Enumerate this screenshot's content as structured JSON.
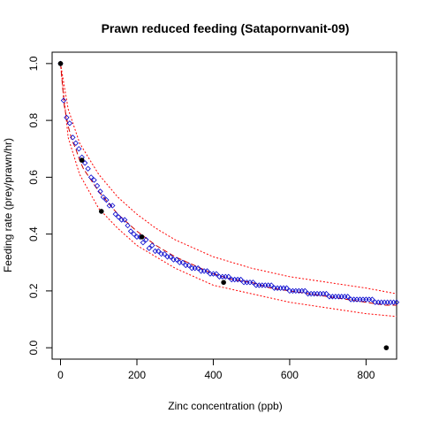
{
  "chart_data": {
    "type": "scatter",
    "title": "Prawn reduced feeding (Satapornvanit-09)",
    "xlabel": "Zinc concentration (ppb)",
    "ylabel": "Feeding rate (prey/prawn/hr)",
    "xlim": [
      -22,
      880
    ],
    "ylim": [
      -0.04,
      1.04
    ],
    "x_ticks": [
      0,
      200,
      400,
      600,
      800
    ],
    "y_ticks": [
      0.0,
      0.2,
      0.4,
      0.6,
      0.8,
      1.0
    ],
    "grid": false,
    "colors": {
      "observed": "#000000",
      "simulated": "#0000cd",
      "fit_curve": "#cc0000",
      "band": "#ff0000"
    },
    "series": [
      {
        "kind": "observed",
        "x": [
          0,
          56,
          107,
          213,
          427,
          853
        ],
        "y": [
          1.0,
          0.66,
          0.48,
          0.39,
          0.23,
          0.0
        ]
      },
      {
        "kind": "simulated",
        "x": [
          0,
          8,
          16,
          24,
          32,
          40,
          48,
          56,
          64,
          72,
          80,
          88,
          96,
          104,
          112,
          120,
          128,
          136,
          144,
          152,
          160,
          168,
          176,
          184,
          192,
          200,
          208,
          216,
          224,
          232,
          240,
          248,
          256,
          264,
          272,
          280,
          288,
          296,
          304,
          312,
          320,
          328,
          336,
          344,
          352,
          360,
          368,
          376,
          384,
          392,
          400,
          408,
          416,
          424,
          432,
          440,
          448,
          456,
          464,
          472,
          480,
          488,
          496,
          504,
          512,
          520,
          528,
          536,
          544,
          552,
          560,
          568,
          576,
          584,
          592,
          600,
          608,
          616,
          624,
          632,
          640,
          648,
          656,
          664,
          672,
          680,
          688,
          696,
          704,
          712,
          720,
          728,
          736,
          744,
          752,
          760,
          768,
          776,
          784,
          792,
          800,
          808,
          816,
          824,
          832,
          840,
          848,
          856,
          864,
          872,
          880
        ],
        "y": [
          1.0,
          0.87,
          0.81,
          0.79,
          0.74,
          0.72,
          0.7,
          0.67,
          0.65,
          0.63,
          0.6,
          0.59,
          0.57,
          0.55,
          0.53,
          0.52,
          0.5,
          0.5,
          0.47,
          0.46,
          0.45,
          0.45,
          0.43,
          0.41,
          0.4,
          0.39,
          0.39,
          0.37,
          0.38,
          0.35,
          0.36,
          0.34,
          0.34,
          0.33,
          0.33,
          0.32,
          0.32,
          0.31,
          0.31,
          0.3,
          0.3,
          0.29,
          0.29,
          0.28,
          0.28,
          0.28,
          0.27,
          0.27,
          0.27,
          0.26,
          0.26,
          0.26,
          0.25,
          0.25,
          0.25,
          0.25,
          0.24,
          0.24,
          0.24,
          0.24,
          0.23,
          0.23,
          0.23,
          0.23,
          0.22,
          0.22,
          0.22,
          0.22,
          0.22,
          0.22,
          0.21,
          0.21,
          0.21,
          0.21,
          0.21,
          0.2,
          0.2,
          0.2,
          0.2,
          0.2,
          0.2,
          0.19,
          0.19,
          0.19,
          0.19,
          0.19,
          0.19,
          0.19,
          0.18,
          0.18,
          0.18,
          0.18,
          0.18,
          0.18,
          0.18,
          0.17,
          0.17,
          0.17,
          0.17,
          0.17,
          0.17,
          0.17,
          0.17,
          0.16,
          0.16,
          0.16,
          0.16,
          0.16,
          0.16,
          0.16,
          0.16
        ]
      },
      {
        "kind": "fit_curve",
        "x": [
          0,
          10,
          20,
          30,
          40,
          50,
          60,
          70,
          80,
          90,
          100,
          125,
          150,
          175,
          200,
          250,
          300,
          350,
          400,
          450,
          500,
          550,
          600,
          650,
          700,
          750,
          800,
          850,
          880
        ],
        "y": [
          1.0,
          0.85,
          0.78,
          0.73,
          0.7,
          0.66,
          0.63,
          0.61,
          0.59,
          0.57,
          0.55,
          0.51,
          0.47,
          0.44,
          0.41,
          0.36,
          0.32,
          0.29,
          0.26,
          0.24,
          0.23,
          0.21,
          0.2,
          0.19,
          0.18,
          0.17,
          0.16,
          0.15,
          0.15
        ]
      },
      {
        "kind": "band_upper",
        "x": [
          0,
          20,
          50,
          100,
          150,
          200,
          250,
          300,
          400,
          500,
          600,
          700,
          800,
          880
        ],
        "y": [
          1.0,
          0.84,
          0.72,
          0.61,
          0.53,
          0.47,
          0.42,
          0.38,
          0.32,
          0.28,
          0.25,
          0.23,
          0.21,
          0.19
        ]
      },
      {
        "kind": "band_lower",
        "x": [
          0,
          20,
          50,
          100,
          150,
          200,
          250,
          300,
          400,
          500,
          600,
          700,
          800,
          880
        ],
        "y": [
          1.0,
          0.74,
          0.61,
          0.49,
          0.42,
          0.36,
          0.32,
          0.28,
          0.22,
          0.19,
          0.16,
          0.14,
          0.12,
          0.11
        ]
      }
    ]
  }
}
